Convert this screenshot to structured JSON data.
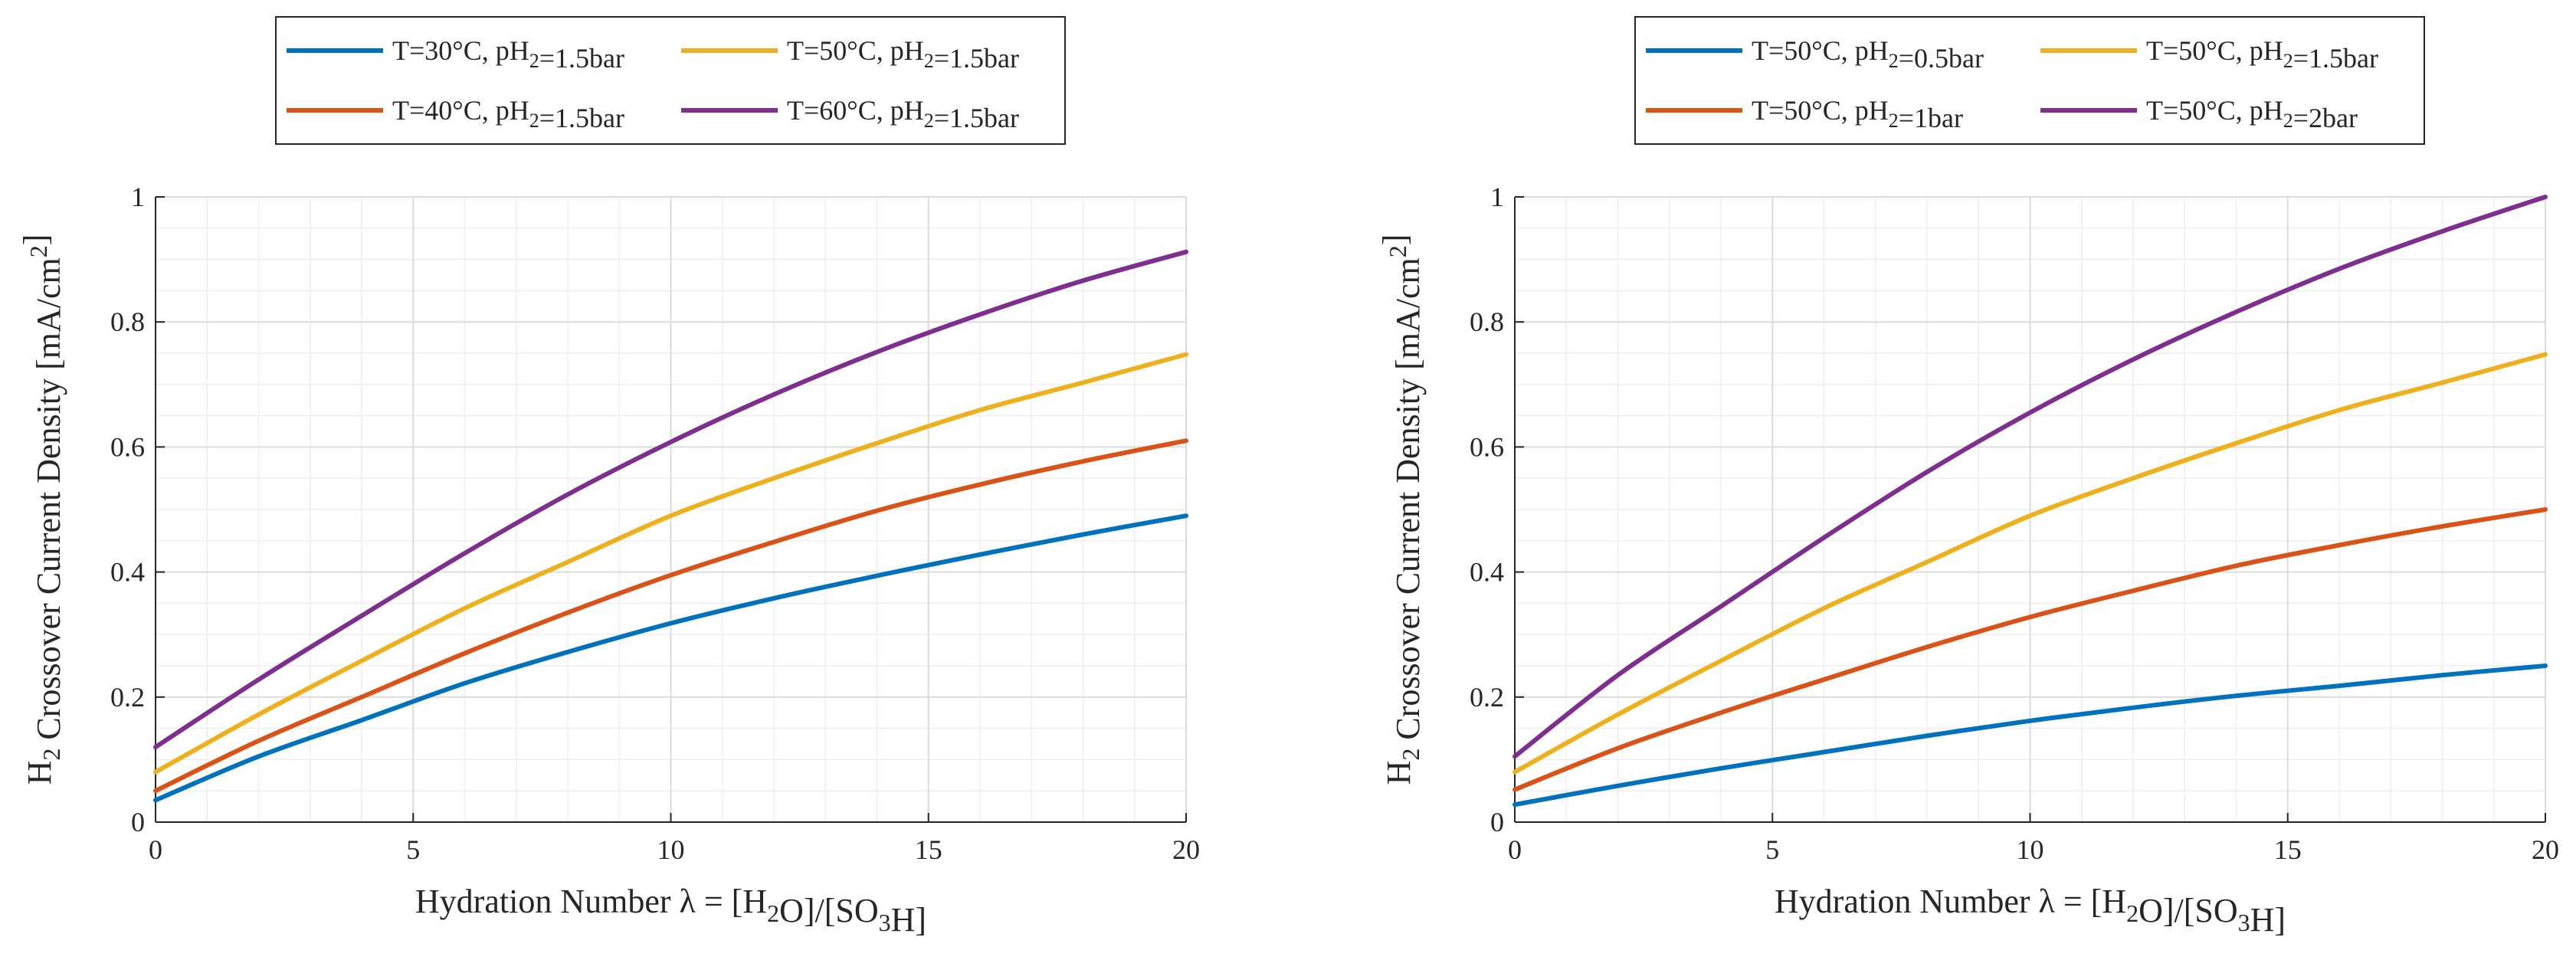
{
  "chart_data": [
    {
      "type": "line",
      "title": "",
      "xlabel": "Hydration Number λ = [H₂O]/[SO₃H]",
      "ylabel": "H₂ Crossover Current Density [mA/cm²]",
      "xlim": [
        0,
        20
      ],
      "ylim": [
        0,
        1
      ],
      "xticks": [
        "0",
        "5",
        "10",
        "15",
        "20"
      ],
      "yticks": [
        "0",
        "0.2",
        "0.4",
        "0.6",
        "0.8",
        "1"
      ],
      "grid": true,
      "legend_position": "top",
      "x": [
        0,
        2,
        4,
        6,
        8,
        10,
        12,
        14,
        16,
        18,
        20
      ],
      "series": [
        {
          "name": "T=30°C, pH₂=1.5bar",
          "color": "#0072BD",
          "values": [
            0.035,
            0.105,
            0.163,
            0.222,
            0.272,
            0.318,
            0.358,
            0.394,
            0.428,
            0.46,
            0.49
          ]
        },
        {
          "name": "T=50°C, pH₂=1.5bar",
          "color": "#EDB120",
          "values": [
            0.08,
            0.172,
            0.258,
            0.342,
            0.416,
            0.49,
            0.55,
            0.606,
            0.659,
            0.703,
            0.748
          ]
        },
        {
          "name": "T=40°C, pH₂=1.5bar",
          "color": "#D95319",
          "values": [
            0.05,
            0.13,
            0.2,
            0.27,
            0.335,
            0.395,
            0.448,
            0.498,
            0.54,
            0.577,
            0.61
          ]
        },
        {
          "name": "T=60°C, pH₂=1.5bar",
          "color": "#7E2F8E",
          "values": [
            0.12,
            0.228,
            0.33,
            0.43,
            0.524,
            0.608,
            0.684,
            0.752,
            0.812,
            0.866,
            0.912
          ]
        }
      ]
    },
    {
      "type": "line",
      "title": "",
      "xlabel": "Hydration Number λ = [H₂O]/[SO₃H]",
      "ylabel": "H₂ Crossover Current Density [mA/cm²]",
      "xlim": [
        0,
        20
      ],
      "ylim": [
        0,
        1
      ],
      "xticks": [
        "0",
        "5",
        "10",
        "15",
        "20"
      ],
      "yticks": [
        "0",
        "0.2",
        "0.4",
        "0.6",
        "0.8",
        "1"
      ],
      "grid": true,
      "legend_position": "top",
      "x": [
        0,
        2,
        4,
        6,
        8,
        10,
        12,
        14,
        16,
        18,
        20
      ],
      "series": [
        {
          "name": "T=50°C, pH₂=0.5bar",
          "color": "#0072BD",
          "values": [
            0.028,
            0.058,
            0.086,
            0.112,
            0.138,
            0.162,
            0.183,
            0.202,
            0.218,
            0.235,
            0.25
          ]
        },
        {
          "name": "T=50°C, pH₂=1.5bar",
          "color": "#EDB120",
          "values": [
            0.08,
            0.172,
            0.258,
            0.342,
            0.416,
            0.49,
            0.55,
            0.606,
            0.659,
            0.703,
            0.748
          ]
        },
        {
          "name": "T=50°C, pH₂=1bar",
          "color": "#D95319",
          "values": [
            0.052,
            0.118,
            0.175,
            0.228,
            0.28,
            0.328,
            0.37,
            0.41,
            0.443,
            0.473,
            0.5
          ]
        },
        {
          "name": "T=50°C, pH₂=2bar",
          "color": "#7E2F8E",
          "values": [
            0.105,
            0.235,
            0.345,
            0.455,
            0.56,
            0.655,
            0.74,
            0.816,
            0.885,
            0.945,
            1.0
          ]
        }
      ]
    }
  ]
}
